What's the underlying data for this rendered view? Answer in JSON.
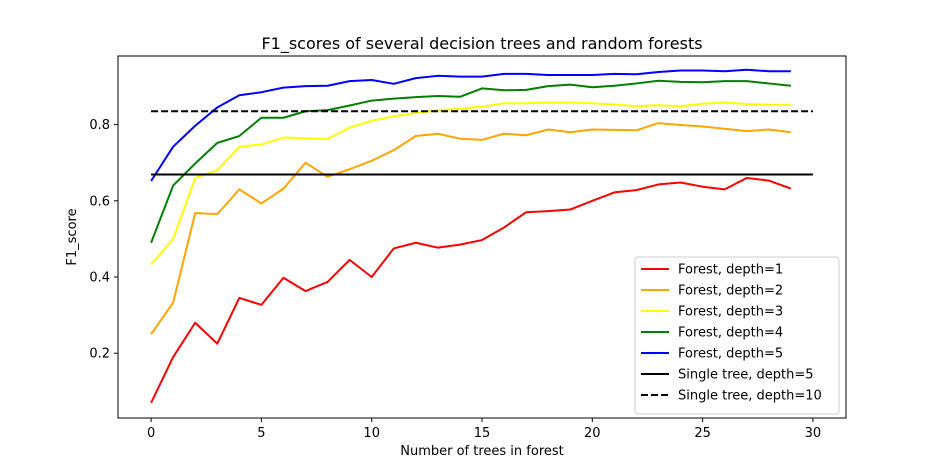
{
  "chart_data": {
    "type": "line",
    "title": "F1_scores of several decision trees and random forests",
    "xlabel": "Number of trees in forest",
    "ylabel": "F1_score",
    "xlim": [
      -1.5,
      31.5
    ],
    "ylim": [
      0.03,
      0.98
    ],
    "xticks": [
      0,
      5,
      10,
      15,
      20,
      25,
      30
    ],
    "xtick_labels": [
      "0",
      "5",
      "10",
      "15",
      "20",
      "25",
      "30"
    ],
    "yticks": [
      0.2,
      0.4,
      0.6,
      0.8
    ],
    "ytick_labels": [
      "0.2",
      "0.4",
      "0.6",
      "0.8"
    ],
    "grid": false,
    "legend_position": "lower-right",
    "x": [
      0,
      1,
      2,
      3,
      4,
      5,
      6,
      7,
      8,
      9,
      10,
      11,
      12,
      13,
      14,
      15,
      16,
      17,
      18,
      19,
      20,
      21,
      22,
      23,
      24,
      25,
      26,
      27,
      28,
      29
    ],
    "series": [
      {
        "name": "Forest, depth=1",
        "color": "#ff0000",
        "style": "solid",
        "values": [
          0.07,
          0.19,
          0.28,
          0.225,
          0.345,
          0.327,
          0.398,
          0.363,
          0.387,
          0.445,
          0.4,
          0.475,
          0.49,
          0.477,
          0.485,
          0.497,
          0.53,
          0.57,
          0.573,
          0.577,
          0.6,
          0.622,
          0.628,
          0.643,
          0.648,
          0.637,
          0.63,
          0.66,
          0.653,
          0.632
        ]
      },
      {
        "name": "Forest, depth=2",
        "color": "#ffa500",
        "style": "solid",
        "values": [
          0.25,
          0.333,
          0.568,
          0.565,
          0.63,
          0.593,
          0.632,
          0.7,
          0.663,
          0.683,
          0.705,
          0.733,
          0.77,
          0.776,
          0.763,
          0.76,
          0.776,
          0.772,
          0.787,
          0.78,
          0.787,
          0.786,
          0.785,
          0.804,
          0.799,
          0.795,
          0.789,
          0.783,
          0.787,
          0.78
        ]
      },
      {
        "name": "Forest, depth=3",
        "color": "#ffff00",
        "style": "solid",
        "values": [
          0.433,
          0.5,
          0.66,
          0.68,
          0.742,
          0.748,
          0.766,
          0.764,
          0.762,
          0.792,
          0.81,
          0.822,
          0.83,
          0.838,
          0.842,
          0.847,
          0.856,
          0.856,
          0.858,
          0.858,
          0.856,
          0.853,
          0.848,
          0.851,
          0.848,
          0.855,
          0.858,
          0.854,
          0.852,
          0.852
        ]
      },
      {
        "name": "Forest, depth=4",
        "color": "#008000",
        "style": "solid",
        "values": [
          0.49,
          0.64,
          0.698,
          0.752,
          0.77,
          0.818,
          0.818,
          0.835,
          0.838,
          0.85,
          0.863,
          0.868,
          0.872,
          0.875,
          0.873,
          0.895,
          0.89,
          0.891,
          0.901,
          0.905,
          0.898,
          0.902,
          0.908,
          0.915,
          0.912,
          0.911,
          0.914,
          0.914,
          0.908,
          0.902
        ]
      },
      {
        "name": "Forest, depth=5",
        "color": "#0000ff",
        "style": "solid",
        "values": [
          0.652,
          0.742,
          0.797,
          0.845,
          0.877,
          0.885,
          0.897,
          0.901,
          0.902,
          0.914,
          0.917,
          0.907,
          0.922,
          0.928,
          0.926,
          0.926,
          0.933,
          0.933,
          0.93,
          0.93,
          0.93,
          0.933,
          0.932,
          0.938,
          0.942,
          0.942,
          0.94,
          0.944,
          0.94,
          0.94
        ]
      },
      {
        "name": "Single tree, depth=5",
        "color": "#000000",
        "style": "solid",
        "constant": 0.669,
        "x_range": [
          0,
          30
        ]
      },
      {
        "name": "Single tree, depth=10",
        "color": "#000000",
        "style": "dashed",
        "constant": 0.835,
        "x_range": [
          0,
          30
        ]
      }
    ]
  }
}
